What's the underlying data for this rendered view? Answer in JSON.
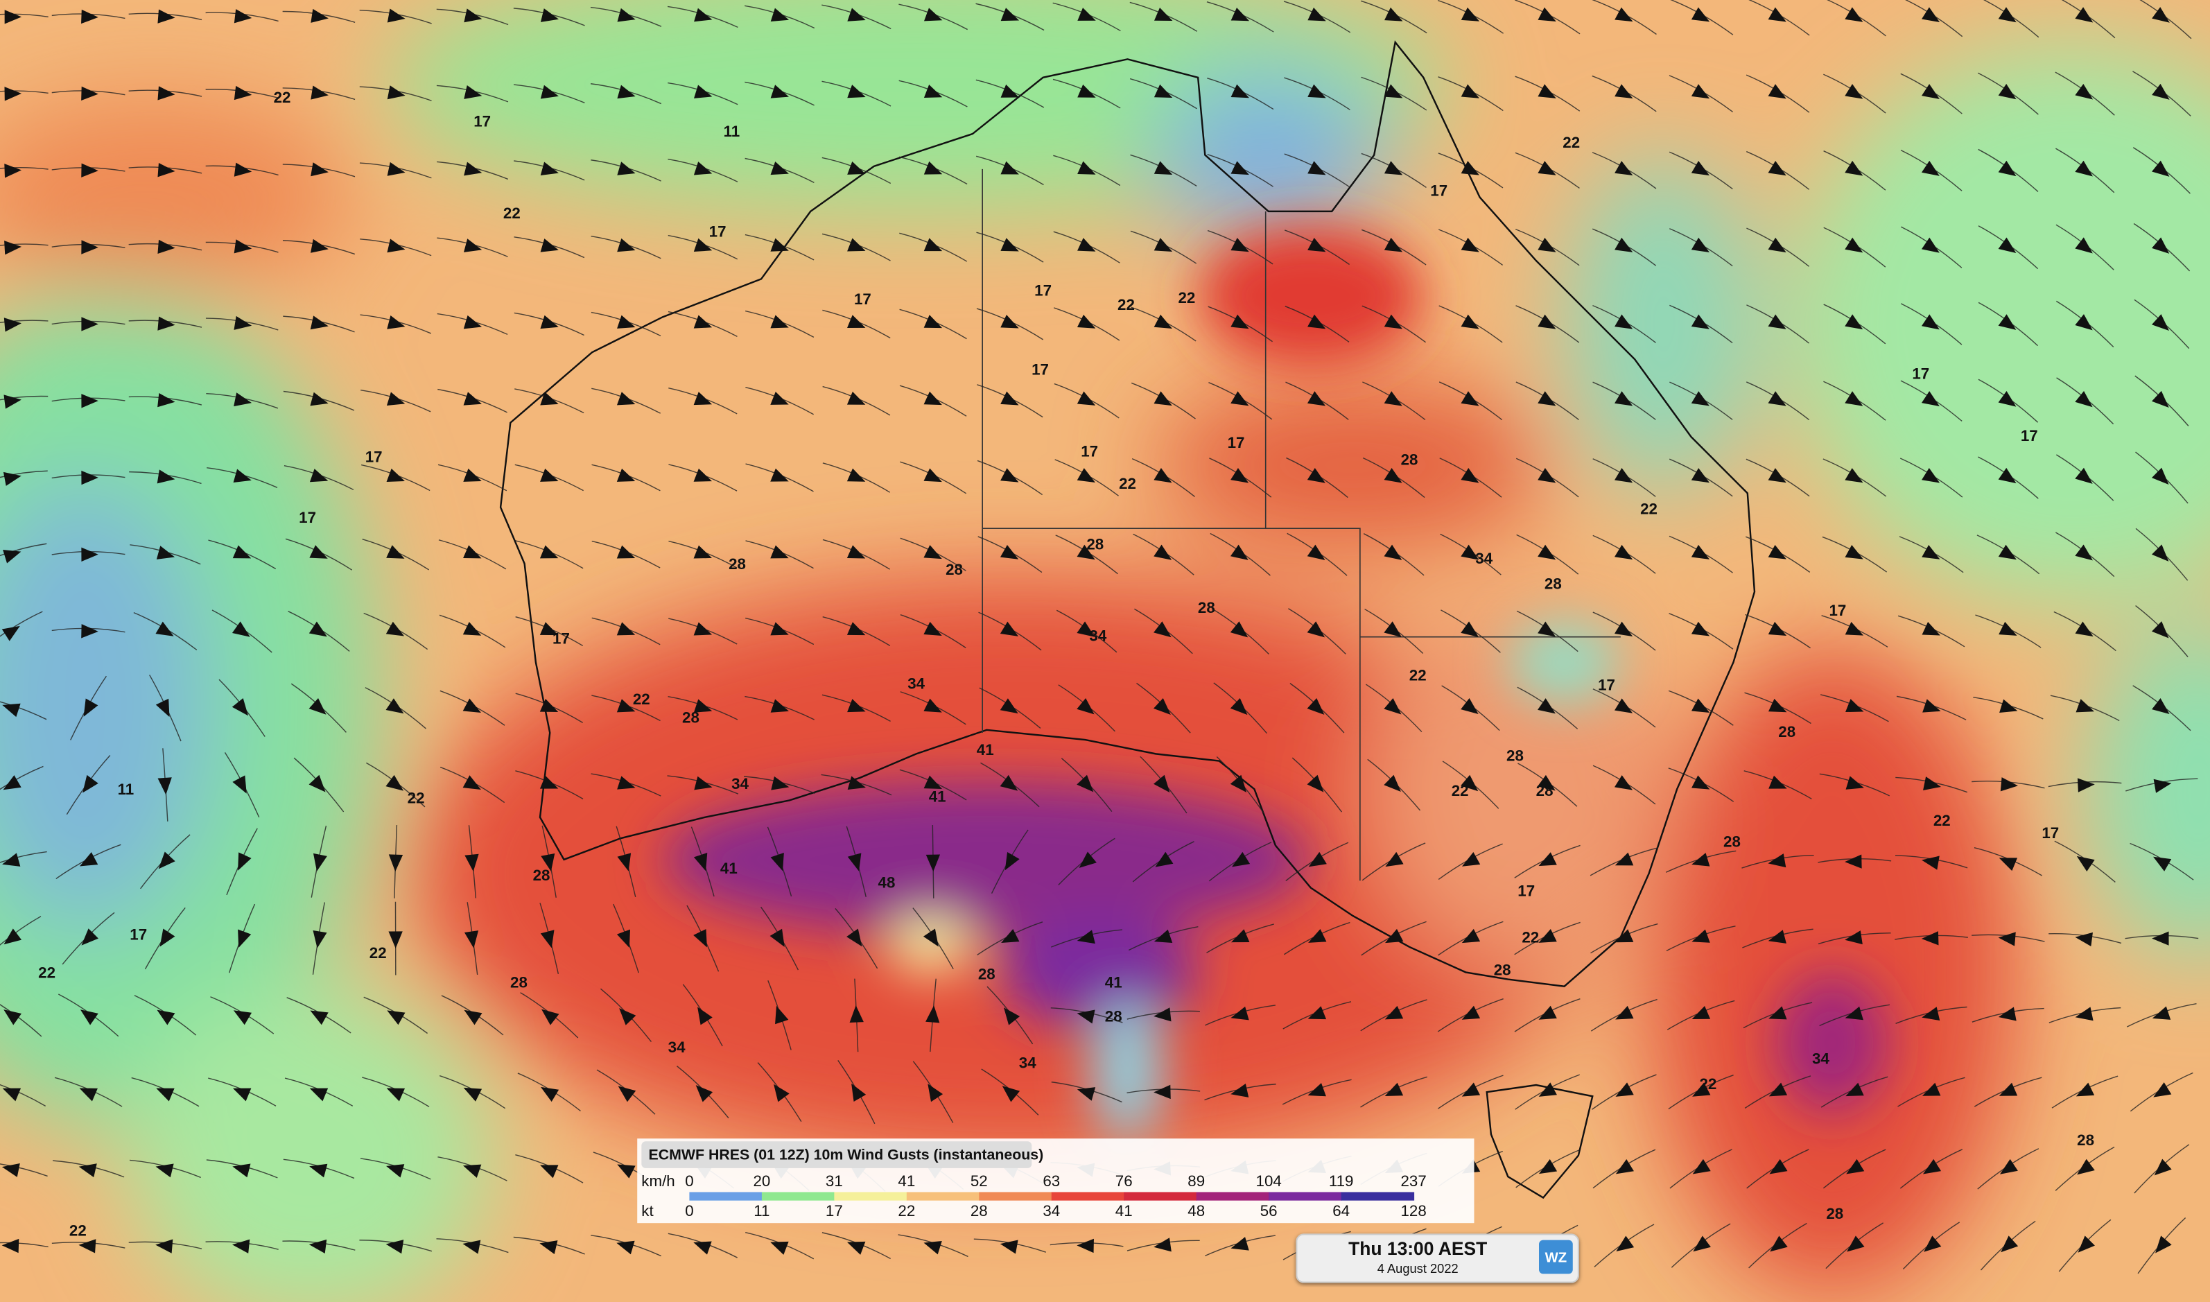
{
  "map": {
    "contour_labels": [
      "22",
      "17",
      "11",
      "22",
      "17",
      "17",
      "17",
      "22",
      "22",
      "17",
      "17",
      "17",
      "22",
      "28",
      "28",
      "28",
      "28",
      "34",
      "34",
      "41",
      "41",
      "41",
      "48",
      "34",
      "28",
      "22",
      "17",
      "28",
      "28",
      "34",
      "28",
      "41",
      "28",
      "34",
      "28",
      "34",
      "28",
      "22",
      "17",
      "22",
      "28",
      "28",
      "22",
      "17",
      "22",
      "28",
      "28",
      "28",
      "22",
      "34",
      "28",
      "17",
      "17",
      "22",
      "17",
      "28",
      "17",
      "22",
      "17",
      "11",
      "17",
      "22",
      "22",
      "17",
      "17",
      "22",
      "22"
    ]
  },
  "legend": {
    "title": "ECMWF HRES (01 12Z) 10m Wind Gusts (instantaneous)",
    "kmh_unit": "km/h",
    "kmh_ticks": [
      0,
      20,
      31,
      41,
      52,
      63,
      76,
      89,
      104,
      119,
      237
    ],
    "kt_unit": "kt",
    "kt_ticks": [
      0,
      11,
      17,
      22,
      28,
      34,
      41,
      48,
      56,
      64,
      128
    ],
    "colors": [
      "#6a9fe6",
      "#8fe88f",
      "#f5f09a",
      "#f7c07a",
      "#f08a55",
      "#e8453a",
      "#d42a3c",
      "#a3247a",
      "#7b2a9e",
      "#3a2f9e"
    ]
  },
  "time_box": {
    "time": "Thu 13:00 AEST",
    "date": "4 August 2022"
  },
  "logo": "WZ"
}
